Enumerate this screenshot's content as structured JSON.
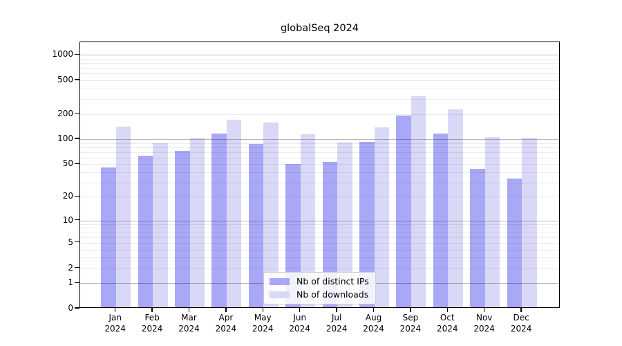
{
  "title": "globalSeq 2024",
  "colors": {
    "distinct_ips_bar": "#a8a8f6",
    "downloads_bar": "#d9d9f7",
    "grid_minor": "#ededed",
    "grid_major": "#b8b8b8",
    "axis": "#000000",
    "legend_border": "#cccccc"
  },
  "legend": {
    "entries": [
      {
        "label": "Nb of distinct IPs",
        "color": "#a8a8f6"
      },
      {
        "label": "Nb of downloads",
        "color": "#d9d9f7"
      }
    ]
  },
  "chart_data": {
    "type": "bar",
    "title": "globalSeq 2024",
    "categories": [
      "Jan",
      "Feb",
      "Mar",
      "Apr",
      "May",
      "Jun",
      "Jul",
      "Aug",
      "Sep",
      "Oct",
      "Nov",
      "Dec"
    ],
    "category_year": "2024",
    "series": [
      {
        "name": "Nb of distinct IPs",
        "color": "#a8a8f6",
        "values": [
          44,
          61,
          70,
          112,
          84,
          48,
          51,
          90,
          185,
          112,
          42,
          32
        ]
      },
      {
        "name": "Nb of downloads",
        "color": "#d9d9f7",
        "values": [
          137,
          86,
          101,
          165,
          152,
          111,
          88,
          132,
          312,
          218,
          102,
          100
        ]
      }
    ],
    "yscale": "log10(1+x)",
    "yticks": [
      0,
      1,
      2,
      5,
      10,
      20,
      50,
      100,
      200,
      500,
      1000
    ],
    "ylim": [
      0,
      1412
    ],
    "grid": {
      "major_at": [
        1,
        10,
        100,
        1000
      ],
      "minor_at_mantissas": [
        2,
        3,
        4,
        5,
        6,
        7,
        8,
        9
      ],
      "visible": true
    },
    "legend_position": "inside-bottom-center",
    "xlabel": "",
    "ylabel": ""
  }
}
